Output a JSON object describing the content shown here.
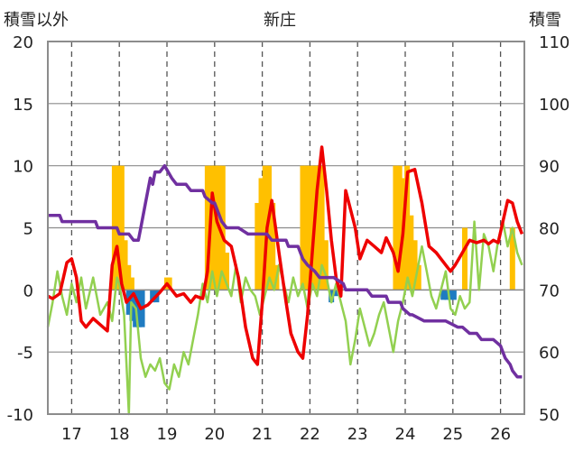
{
  "chart_data": {
    "type": "combo",
    "title": "新庄",
    "y_left_label": "積雪以外",
    "y_right_label": "積雪",
    "x_ticks": [
      "17",
      "18",
      "19",
      "20",
      "21",
      "22",
      "23",
      "24",
      "25",
      "26"
    ],
    "y_left_ticks": [
      "20",
      "15",
      "10",
      "5",
      "0",
      "-5",
      "-10"
    ],
    "y_right_ticks": [
      "110",
      "100",
      "90",
      "80",
      "70",
      "60",
      "50"
    ],
    "ylim_left": [
      -10,
      20
    ],
    "ylim_right": [
      50,
      110
    ],
    "xlim": [
      16.5,
      26.5
    ],
    "grid": "dashed vertical at each day",
    "colors": {
      "temperature": "#ee0000",
      "green": "#92d050",
      "snow_depth": "#7030a0",
      "bars_positive": "#ffc000",
      "bars_negative": "#1f7bc1"
    },
    "series": [
      {
        "key": "temperature",
        "axis": "left",
        "x": [
          16.5,
          16.6,
          16.75,
          16.9,
          17.0,
          17.1,
          17.2,
          17.3,
          17.45,
          17.6,
          17.75,
          17.85,
          17.95,
          18.05,
          18.15,
          18.3,
          18.45,
          18.6,
          18.7,
          18.85,
          19.0,
          19.2,
          19.35,
          19.5,
          19.6,
          19.75,
          19.85,
          19.95,
          20.05,
          20.2,
          20.35,
          20.5,
          20.65,
          20.8,
          20.9,
          21.0,
          21.1,
          21.2,
          21.35,
          21.5,
          21.6,
          21.75,
          21.85,
          21.95,
          22.05,
          22.15,
          22.25,
          22.35,
          22.45,
          22.55,
          22.65,
          22.75,
          22.85,
          22.95,
          23.05,
          23.2,
          23.35,
          23.5,
          23.6,
          23.75,
          23.85,
          23.95,
          24.05,
          24.2,
          24.35,
          24.5,
          24.65,
          24.75,
          24.85,
          24.95,
          25.05,
          25.2,
          25.35,
          25.5,
          25.65,
          25.75,
          25.85,
          25.95,
          26.05,
          26.15,
          26.25,
          26.35,
          26.45
        ],
        "y": [
          -0.5,
          -0.7,
          -0.3,
          2.2,
          2.5,
          1.0,
          -2.5,
          -3.0,
          -2.3,
          -2.8,
          -3.3,
          2.0,
          3.5,
          0.5,
          -1.0,
          -0.3,
          -1.5,
          -1.2,
          -0.8,
          -0.2,
          0.5,
          -0.5,
          -0.3,
          -1.0,
          -0.5,
          -0.7,
          1.5,
          7.8,
          5.5,
          4.0,
          3.5,
          1.0,
          -3.0,
          -5.5,
          -6.0,
          -1.0,
          5.0,
          7.2,
          3.0,
          -1.0,
          -3.5,
          -5.0,
          -5.5,
          -2.0,
          3.0,
          8.0,
          11.5,
          8.0,
          4.0,
          1.0,
          -0.5,
          8.0,
          6.5,
          5.0,
          2.5,
          4.0,
          3.5,
          3.0,
          4.2,
          3.0,
          1.5,
          4.5,
          9.5,
          9.7,
          7.0,
          3.5,
          3.0,
          2.5,
          2.0,
          1.5,
          2.0,
          3.0,
          4.0,
          3.8,
          4.0,
          3.7,
          4.0,
          3.8,
          5.5,
          7.2,
          7.0,
          5.5,
          4.5
        ]
      },
      {
        "key": "green",
        "axis": "left",
        "x": [
          16.5,
          16.6,
          16.7,
          16.8,
          16.9,
          17.0,
          17.1,
          17.2,
          17.3,
          17.45,
          17.6,
          17.75,
          17.85,
          17.95,
          18.0,
          18.1,
          18.2,
          18.25,
          18.35,
          18.45,
          18.55,
          18.65,
          18.75,
          18.85,
          18.95,
          19.05,
          19.15,
          19.25,
          19.35,
          19.45,
          19.55,
          19.65,
          19.75,
          19.85,
          19.95,
          20.05,
          20.15,
          20.25,
          20.35,
          20.45,
          20.55,
          20.65,
          20.75,
          20.85,
          20.95,
          21.05,
          21.15,
          21.25,
          21.35,
          21.45,
          21.55,
          21.65,
          21.75,
          21.85,
          21.95,
          22.05,
          22.15,
          22.25,
          22.35,
          22.45,
          22.55,
          22.65,
          22.75,
          22.85,
          22.95,
          23.05,
          23.15,
          23.25,
          23.35,
          23.45,
          23.55,
          23.65,
          23.75,
          23.85,
          23.95,
          24.05,
          24.15,
          24.25,
          24.35,
          24.45,
          24.55,
          24.65,
          24.75,
          24.85,
          24.95,
          25.05,
          25.15,
          25.25,
          25.35,
          25.45,
          25.55,
          25.65,
          25.75,
          25.85,
          25.95,
          26.05,
          26.15,
          26.25,
          26.35,
          26.45
        ],
        "y": [
          -3.0,
          -1.0,
          1.5,
          -0.5,
          -2.0,
          0.5,
          -1.0,
          1.0,
          -1.5,
          1.0,
          -2.0,
          -1.0,
          -2.5,
          1.0,
          0.5,
          -2.0,
          -10.0,
          -1.0,
          -1.5,
          -5.5,
          -7.0,
          -6.0,
          -6.5,
          -5.5,
          -7.5,
          -8.0,
          -6.0,
          -7.0,
          -5.0,
          -6.0,
          -4.0,
          -2.0,
          0.5,
          -1.0,
          1.5,
          -0.5,
          1.5,
          0.5,
          -0.5,
          2.0,
          -1.0,
          1.0,
          0.0,
          -0.5,
          -2.0,
          -0.5,
          1.0,
          0.0,
          2.0,
          0.5,
          -1.0,
          1.0,
          -0.5,
          0.5,
          -1.5,
          0.5,
          -0.5,
          2.0,
          1.0,
          -1.0,
          0.5,
          -1.0,
          -2.5,
          -6.0,
          -4.0,
          -1.5,
          -3.0,
          -4.5,
          -3.5,
          -2.0,
          -1.0,
          -3.0,
          -5.0,
          -2.5,
          -1.0,
          1.0,
          -0.5,
          1.5,
          3.5,
          1.5,
          -0.5,
          -1.5,
          0.0,
          1.5,
          -1.5,
          -2.0,
          -0.5,
          -1.5,
          -1.0,
          5.5,
          0.0,
          4.5,
          3.5,
          1.5,
          4.0,
          5.5,
          3.5,
          5.0,
          3.0,
          2.0
        ]
      },
      {
        "key": "snow_depth",
        "axis": "right",
        "x": [
          16.5,
          16.75,
          16.8,
          17.5,
          17.55,
          17.95,
          18.0,
          18.2,
          18.3,
          18.4,
          18.45,
          18.55,
          18.65,
          18.7,
          18.75,
          18.85,
          18.95,
          19.1,
          19.2,
          19.4,
          19.5,
          19.75,
          19.8,
          19.95,
          20.0,
          20.15,
          20.25,
          20.5,
          20.7,
          20.75,
          20.8,
          21.1,
          21.2,
          21.5,
          21.55,
          21.75,
          21.85,
          21.95,
          22.1,
          22.2,
          22.5,
          22.7,
          22.75,
          23.1,
          23.2,
          23.3,
          23.6,
          23.65,
          23.9,
          23.95,
          24.1,
          24.15,
          24.4,
          24.5,
          24.55,
          24.8,
          24.85,
          25.1,
          25.2,
          25.35,
          25.5,
          25.6,
          25.75,
          25.85,
          26.0,
          26.05,
          26.1,
          26.2,
          26.25,
          26.35,
          26.45
        ],
        "y": [
          82,
          82,
          81,
          81,
          80,
          80,
          79,
          79,
          78,
          78,
          80,
          84,
          88,
          87,
          89,
          89,
          90,
          88,
          87,
          87,
          86,
          86,
          85,
          84,
          84,
          81,
          80,
          80,
          79,
          79,
          79,
          79,
          78,
          78,
          77,
          77,
          75,
          74,
          73,
          72,
          72,
          71,
          70,
          70,
          70,
          69,
          69,
          68,
          68,
          67,
          66,
          66,
          65,
          65,
          65,
          65,
          65,
          64,
          64,
          63,
          63,
          62,
          62,
          62,
          61,
          60,
          59,
          58,
          57,
          56,
          56
        ]
      }
    ],
    "bars": {
      "axis": "left",
      "positive": [
        [
          17.9,
          10
        ],
        [
          17.98,
          10
        ],
        [
          18.05,
          10
        ],
        [
          18.12,
          4
        ],
        [
          18.19,
          2
        ],
        [
          18.26,
          1
        ],
        [
          19.0,
          1
        ],
        [
          19.05,
          1
        ],
        [
          19.85,
          10
        ],
        [
          19.93,
          10
        ],
        [
          20.01,
          10
        ],
        [
          20.09,
          10
        ],
        [
          20.17,
          10
        ],
        [
          20.25,
          3
        ],
        [
          20.9,
          7
        ],
        [
          20.98,
          9
        ],
        [
          21.06,
          10
        ],
        [
          21.14,
          10
        ],
        [
          21.22,
          7
        ],
        [
          21.3,
          2
        ],
        [
          21.85,
          10
        ],
        [
          21.93,
          10
        ],
        [
          22.01,
          10
        ],
        [
          22.09,
          10
        ],
        [
          22.17,
          10
        ],
        [
          22.25,
          10
        ],
        [
          22.33,
          4
        ],
        [
          23.8,
          10
        ],
        [
          23.88,
          10
        ],
        [
          23.96,
          9
        ],
        [
          24.04,
          10
        ],
        [
          24.12,
          6
        ],
        [
          24.2,
          4
        ],
        [
          24.28,
          2
        ],
        [
          25.25,
          5
        ],
        [
          26.25,
          5
        ]
      ],
      "negative": [
        [
          18.2,
          -2
        ],
        [
          18.27,
          -2.5
        ],
        [
          18.34,
          -3
        ],
        [
          18.41,
          -3
        ],
        [
          18.48,
          -3
        ],
        [
          18.7,
          -1
        ],
        [
          18.78,
          -1
        ],
        [
          22.45,
          -1
        ],
        [
          22.55,
          -0.5
        ],
        [
          24.8,
          -0.8
        ],
        [
          24.88,
          -0.8
        ],
        [
          24.95,
          -0.8
        ],
        [
          25.02,
          -0.8
        ]
      ]
    }
  }
}
